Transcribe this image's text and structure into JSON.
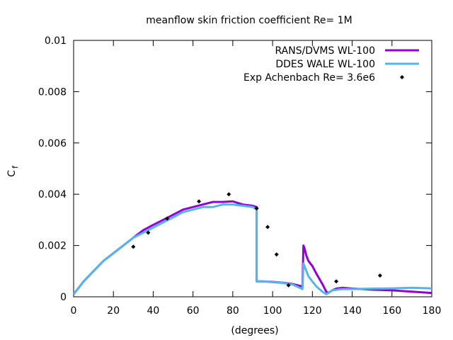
{
  "chart_data": {
    "type": "line",
    "title": "meanflow skin friction coefficient Re= 1M",
    "xlabel": "(degrees)",
    "ylabel": "C",
    "ylabel_subscript": "f",
    "xlim": [
      0,
      180
    ],
    "ylim": [
      0,
      0.01
    ],
    "xticks": [
      "0",
      "20",
      "40",
      "60",
      "80",
      "100",
      "120",
      "140",
      "160",
      "180"
    ],
    "yticks": [
      "0",
      "0.002",
      "0.004",
      "0.006",
      "0.008",
      "0.01"
    ],
    "grid": false,
    "legend_position": "top-right",
    "series": [
      {
        "name": "RANS/DVMS WL-100",
        "style": "line",
        "color": "#9400d3",
        "x": [
          0,
          5,
          10,
          15,
          20,
          25,
          30,
          35,
          40,
          45,
          50,
          55,
          60,
          65,
          70,
          75,
          80,
          85,
          90,
          92,
          92,
          95,
          100,
          105,
          110,
          115,
          115.5,
          116,
          117,
          118,
          120,
          122,
          125,
          127,
          128,
          130,
          132,
          135,
          140,
          145,
          150,
          160,
          170,
          180
        ],
        "y": [
          0.0001,
          0.0006,
          0.001,
          0.0014,
          0.0017,
          0.002,
          0.0023,
          0.0026,
          0.0028,
          0.003,
          0.0032,
          0.0034,
          0.0035,
          0.0036,
          0.0037,
          0.0037,
          0.00372,
          0.0036,
          0.00355,
          0.0035,
          0.0006,
          0.0006,
          0.00058,
          0.00055,
          0.0005,
          0.0004,
          0.002,
          0.0019,
          0.0016,
          0.0014,
          0.0012,
          0.0009,
          0.0005,
          0.0002,
          0.00015,
          0.00025,
          0.00032,
          0.00035,
          0.00032,
          0.0003,
          0.00028,
          0.00025,
          0.0002,
          0.00015
        ]
      },
      {
        "name": "DDES WALE WL-100",
        "style": "line",
        "color": "#56b4e9",
        "x": [
          0,
          5,
          10,
          15,
          20,
          25,
          30,
          35,
          40,
          45,
          50,
          55,
          60,
          65,
          70,
          75,
          80,
          85,
          90,
          92,
          92,
          95,
          100,
          105,
          110,
          115,
          115.5,
          116,
          117,
          118,
          120,
          122,
          125,
          127,
          130,
          135,
          140,
          150,
          160,
          170,
          180
        ],
        "y": [
          0.0001,
          0.0006,
          0.001,
          0.0014,
          0.0017,
          0.002,
          0.0023,
          0.0025,
          0.0027,
          0.0029,
          0.0031,
          0.0033,
          0.0034,
          0.0035,
          0.0035,
          0.0036,
          0.0036,
          0.00355,
          0.0035,
          0.0034,
          0.0006,
          0.0006,
          0.00057,
          0.00054,
          0.00048,
          0.0003,
          0.0013,
          0.0012,
          0.001,
          0.0008,
          0.0006,
          0.0004,
          0.0002,
          0.0001,
          0.00025,
          0.0003,
          0.0003,
          0.00032,
          0.00033,
          0.00035,
          0.00033
        ]
      },
      {
        "name": "Exp Achenbach Re= 3.6e6",
        "style": "points",
        "color": "#000000",
        "x": [
          30,
          37.5,
          47,
          63,
          78,
          92,
          97.5,
          102,
          108,
          132,
          154
        ],
        "y": [
          0.00195,
          0.0025,
          0.00305,
          0.00372,
          0.004,
          0.00345,
          0.00272,
          0.00165,
          0.00045,
          0.0006,
          0.00083
        ]
      }
    ]
  }
}
